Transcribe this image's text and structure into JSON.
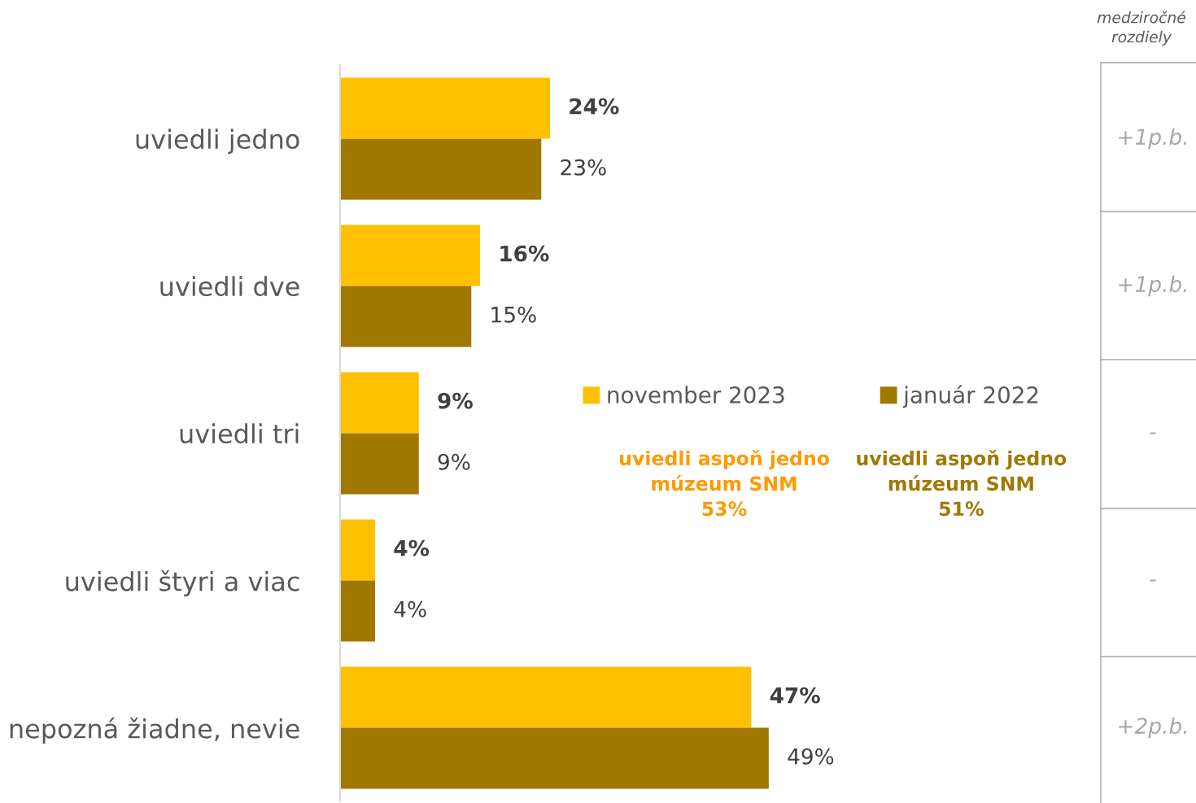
{
  "chart_data": {
    "type": "bar",
    "orientation": "horizontal",
    "categories": [
      "uviedli jedno",
      "uviedli dve",
      "uviedli tri",
      "uviedli štyri a viac",
      "nepozná žiadne, nevie"
    ],
    "series": [
      {
        "name": "november 2023",
        "color": "#ffc000",
        "values": [
          24,
          16,
          9,
          4,
          47
        ],
        "value_labels": [
          "24%",
          "16%",
          "9%",
          "4%",
          "47%"
        ]
      },
      {
        "name": "január 2022",
        "color": "#a07800",
        "values": [
          23,
          15,
          9,
          4,
          49
        ],
        "value_labels": [
          "23%",
          "15%",
          "9%",
          "4%",
          "49%"
        ]
      }
    ],
    "legend": "right",
    "grid": false,
    "annotations": [
      "medziročné rozdiely",
      "+1p.b.",
      "+1p.b.",
      "-",
      "-",
      "+2p.b.",
      "uviedli aspoň jedno\nmúzeum SNM\n53%",
      "uviedli aspoň jedno\nmúzeum SNM\n51%"
    ]
  }
}
